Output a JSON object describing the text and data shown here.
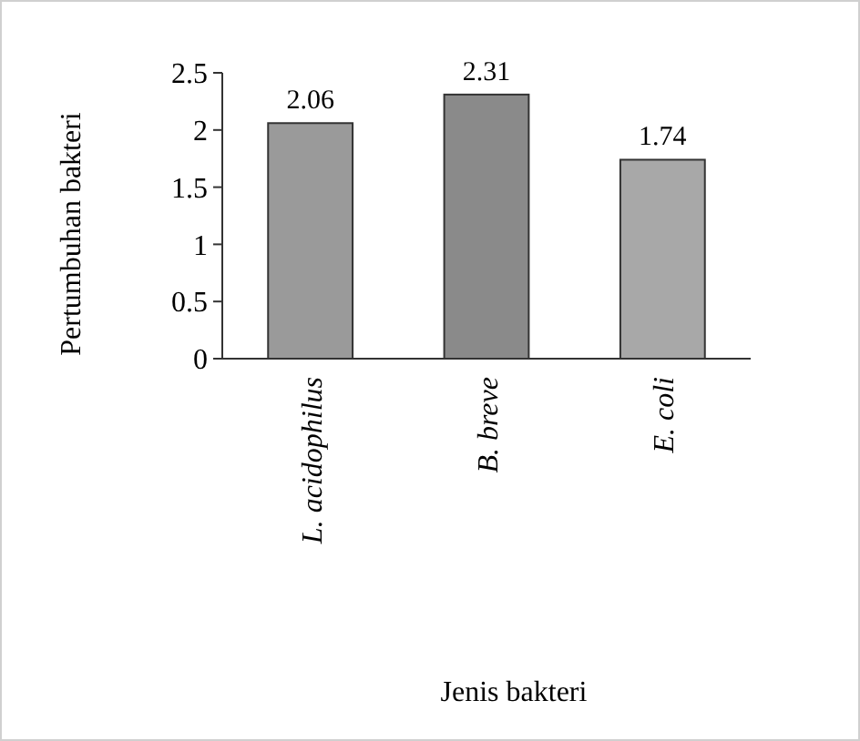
{
  "chart_data": {
    "type": "bar",
    "xlabel": "Jenis bakteri",
    "ylabel": "Pertumbuhan bakteri",
    "categories": [
      "L. acidophilus",
      "B. breve",
      "E. coli"
    ],
    "values": [
      2.06,
      2.31,
      1.74
    ],
    "colors": [
      "#9a9a9a",
      "#8a8a8a",
      "#a8a8a8"
    ],
    "ylim": [
      0,
      2.5
    ],
    "yticks": [
      0,
      0.5,
      1,
      {
        "value": 1.5,
        "label": "1.5"
      },
      2,
      {
        "value": 2.5,
        "label": "2.5"
      }
    ],
    "data_labels": true
  }
}
